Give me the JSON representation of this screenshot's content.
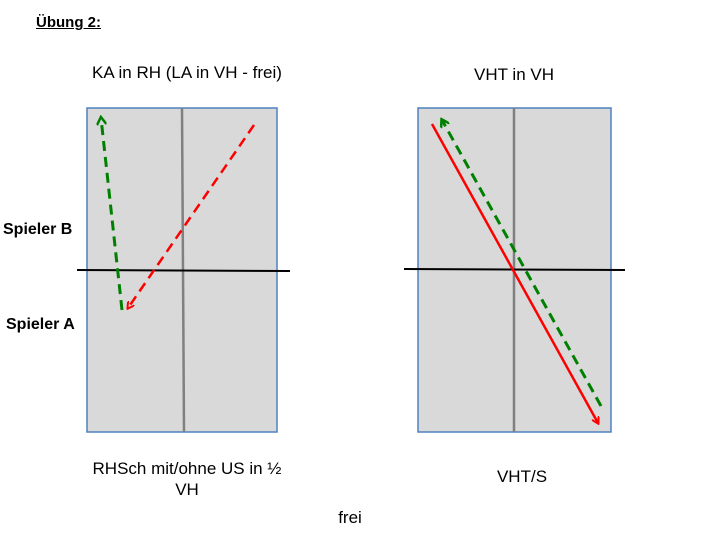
{
  "heading": "Übung 2:",
  "labels": {
    "spieler_b": "Spieler B",
    "spieler_a": "Spieler A"
  },
  "left_court": {
    "top_caption": "KA in RH (LA in VH - frei)",
    "bottom_caption": "RHSch mit/ohne US in ½ VH"
  },
  "right_court": {
    "top_caption": "VHT in VH",
    "bottom_caption": "VHT/S"
  },
  "footer": "frei",
  "colors": {
    "court_fill": "#d9d9d9",
    "court_border": "#4f81bd",
    "center_line": "#808080",
    "net": "#000000",
    "red_arrow": "#ff0000",
    "green_arrow": "#008000"
  }
}
